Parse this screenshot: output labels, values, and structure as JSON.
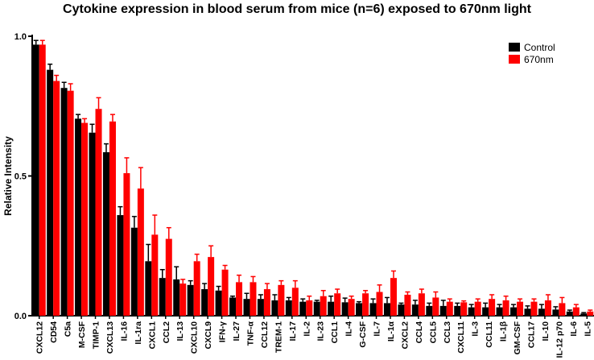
{
  "chart_data": {
    "type": "bar",
    "title": "Cytokine expression in blood serum from mice (n=6) exposed to 670nm light",
    "xlabel": "",
    "ylabel": "Relative Intensity",
    "ylim": [
      0,
      1.0
    ],
    "yticks": [
      "0.0",
      "0.5",
      "1.0"
    ],
    "ytick_values": [
      0,
      0.5,
      1.0
    ],
    "legend_position": "top-right",
    "categories": [
      "CXCL12",
      "CD54",
      "C5a",
      "M-CSF",
      "TIMP-1",
      "CXCL13",
      "IL-16",
      "IL-1ra",
      "CXCL1",
      "CCL2",
      "IL-13",
      "CXCL10",
      "CXCL9",
      "IFN-γ",
      "IL-27",
      "TNF-α",
      "CCL12",
      "TREM-1",
      "IL-17",
      "IL-2",
      "IL-23",
      "CCL1",
      "IL-4",
      "G-CSF",
      "IL-7",
      "IL-1α",
      "CXCL2",
      "CCL4",
      "CCL5",
      "CCL3",
      "CXCL11",
      "IL-3",
      "CCL11",
      "IL-1β",
      "GM-CSF",
      "CCL17",
      "IL-10",
      "IL-12 p70",
      "IL-6",
      "IL-5"
    ],
    "series": [
      {
        "name": "Control",
        "color": "#000000",
        "values": [
          0.97,
          0.88,
          0.815,
          0.705,
          0.655,
          0.585,
          0.36,
          0.315,
          0.195,
          0.135,
          0.13,
          0.11,
          0.095,
          0.09,
          0.065,
          0.06,
          0.06,
          0.055,
          0.055,
          0.05,
          0.05,
          0.05,
          0.048,
          0.045,
          0.045,
          0.045,
          0.04,
          0.04,
          0.035,
          0.035,
          0.035,
          0.03,
          0.03,
          0.03,
          0.03,
          0.025,
          0.025,
          0.022,
          0.015,
          0.008
        ],
        "errors": [
          0.015,
          0.02,
          0.02,
          0.015,
          0.03,
          0.03,
          0.03,
          0.04,
          0.06,
          0.03,
          0.045,
          0.015,
          0.02,
          0.015,
          0.005,
          0.02,
          0.015,
          0.02,
          0.01,
          0.01,
          0.005,
          0.02,
          0.015,
          0.005,
          0.015,
          0.02,
          0.005,
          0.015,
          0.01,
          0.02,
          0.01,
          0.01,
          0.015,
          0.01,
          0.01,
          0.01,
          0.015,
          0.01,
          0.005,
          0.003
        ]
      },
      {
        "name": "670nm",
        "color": "#ff0000",
        "values": [
          0.97,
          0.84,
          0.805,
          0.69,
          0.74,
          0.695,
          0.51,
          0.455,
          0.29,
          0.275,
          0.115,
          0.195,
          0.21,
          0.165,
          0.12,
          0.12,
          0.095,
          0.11,
          0.1,
          0.055,
          0.07,
          0.08,
          0.06,
          0.08,
          0.085,
          0.135,
          0.075,
          0.08,
          0.065,
          0.05,
          0.048,
          0.05,
          0.06,
          0.055,
          0.05,
          0.05,
          0.055,
          0.045,
          0.03,
          0.015
        ],
        "errors": [
          0.015,
          0.02,
          0.025,
          0.015,
          0.04,
          0.025,
          0.055,
          0.075,
          0.07,
          0.04,
          0.015,
          0.025,
          0.04,
          0.015,
          0.025,
          0.02,
          0.02,
          0.015,
          0.025,
          0.015,
          0.02,
          0.015,
          0.01,
          0.01,
          0.025,
          0.025,
          0.01,
          0.015,
          0.02,
          0.01,
          0.005,
          0.01,
          0.015,
          0.015,
          0.01,
          0.01,
          0.02,
          0.02,
          0.01,
          0.005
        ]
      }
    ]
  }
}
